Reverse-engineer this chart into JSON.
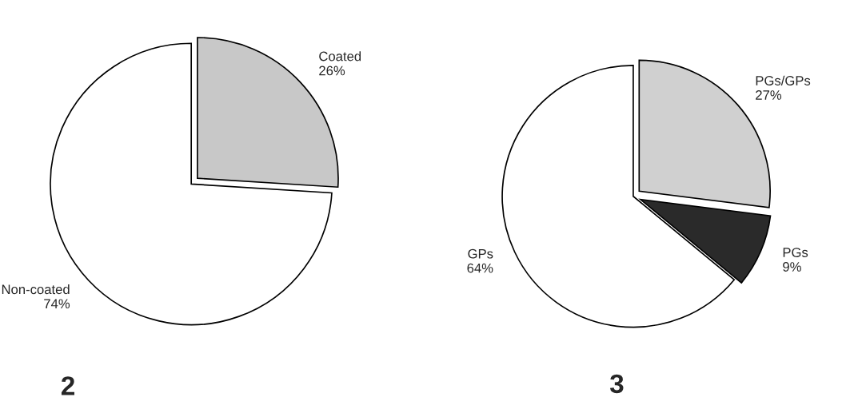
{
  "chart_data": [
    {
      "type": "pie",
      "title": "2",
      "categories": [
        "Coated",
        "Non-coated"
      ],
      "values": [
        26,
        74
      ],
      "colors": [
        "#c8c8c8",
        "#ffffff"
      ],
      "value_labels": [
        "26%",
        "74%"
      ]
    },
    {
      "type": "pie",
      "title": "3",
      "categories": [
        "PGs/GPs",
        "PGs",
        "GPs"
      ],
      "values": [
        27,
        9,
        64
      ],
      "colors": [
        "#d0d0d0",
        "#2a2a2a",
        "#ffffff"
      ],
      "value_labels": [
        "27%",
        "9%",
        "64%"
      ]
    }
  ]
}
